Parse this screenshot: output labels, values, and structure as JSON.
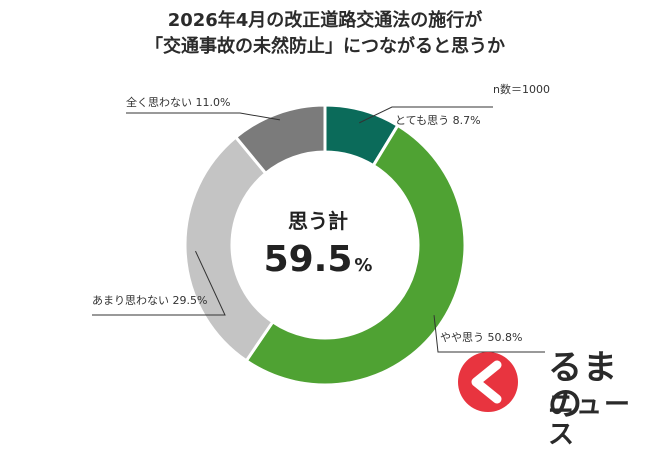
{
  "title_lines": [
    "2026年4月の改正道路交通法の施行が",
    "「交通事故の未然防止」につながると思うか"
  ],
  "sample_note": "n数＝1000",
  "center": {
    "label": "思う計",
    "value": "59.5",
    "unit": "%"
  },
  "watermark": {
    "line1": "るまの",
    "line2": "ニュース",
    "logo_color": "#e8343f"
  },
  "chart_data": {
    "type": "pie",
    "donut": true,
    "categories": [
      "とても思う",
      "やや思う",
      "あまり思わない",
      "全く思わない"
    ],
    "values": [
      8.7,
      50.8,
      29.5,
      11.0
    ],
    "unit": "%",
    "labels": [
      "とても思う 8.7%",
      "やや思う 50.8%",
      "あまり思わない 29.5%",
      "全く思わない 11.0%"
    ],
    "colors": [
      "#0b6b5a",
      "#4fa233",
      "#c4c4c4",
      "#7b7b7b"
    ]
  }
}
